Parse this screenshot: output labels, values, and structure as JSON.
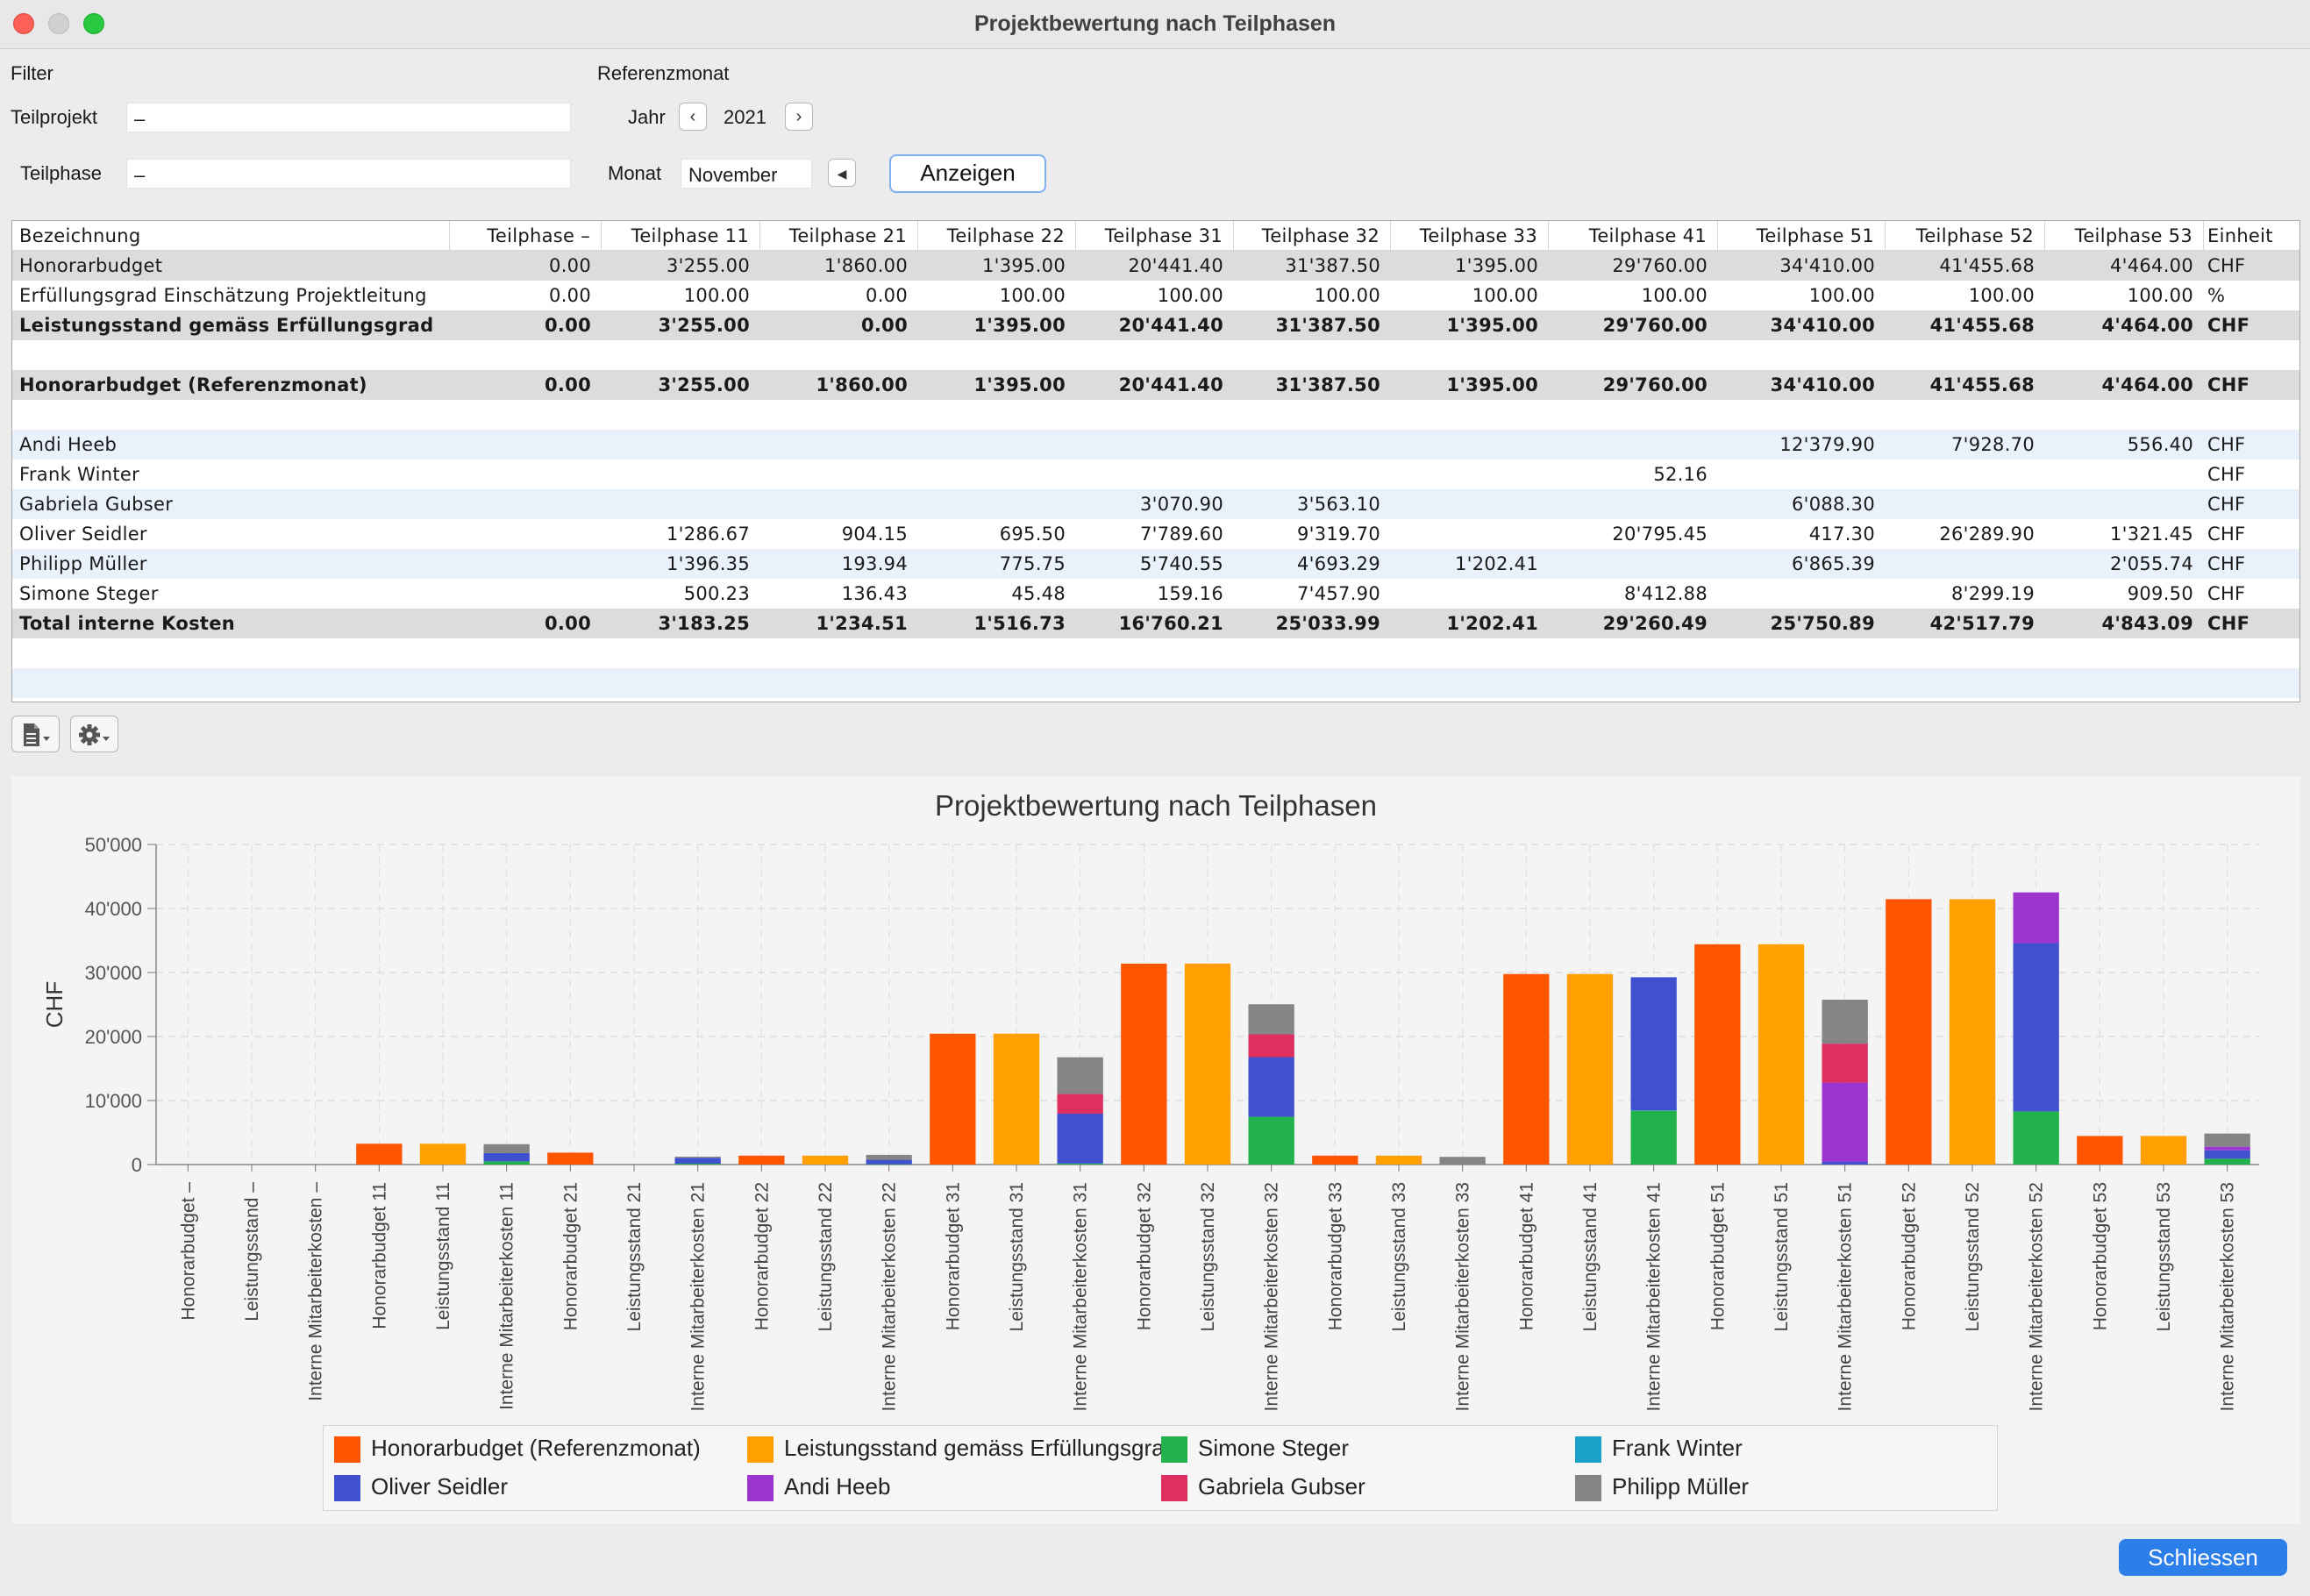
{
  "window": {
    "title": "Projektbewertung nach Teilphasen"
  },
  "filter": {
    "label": "Filter",
    "teilprojekt_label": "Teilprojekt",
    "teilprojekt_value": "–",
    "teilphase_label": "Teilphase",
    "teilphase_value": "–"
  },
  "referenz": {
    "label": "Referenzmonat",
    "jahr_label": "Jahr",
    "jahr_value": "2021",
    "monat_label": "Monat",
    "monat_value": "November",
    "anzeigen_label": "Anzeigen"
  },
  "table": {
    "headers": [
      "Bezeichnung",
      "Teilphase –",
      "Teilphase 11",
      "Teilphase 21",
      "Teilphase 22",
      "Teilphase 31",
      "Teilphase 32",
      "Teilphase 33",
      "Teilphase 41",
      "Teilphase 51",
      "Teilphase 52",
      "Teilphase 53",
      "Einheit"
    ],
    "rows": [
      {
        "style": "gray",
        "bold": false,
        "cells": [
          "Honorarbudget",
          "0.00",
          "3'255.00",
          "1'860.00",
          "1'395.00",
          "20'441.40",
          "31'387.50",
          "1'395.00",
          "29'760.00",
          "34'410.00",
          "41'455.68",
          "4'464.00",
          "CHF"
        ]
      },
      {
        "style": "white",
        "bold": false,
        "cells": [
          "Erfüllungsgrad Einschätzung Projektleitung",
          "0.00",
          "100.00",
          "0.00",
          "100.00",
          "100.00",
          "100.00",
          "100.00",
          "100.00",
          "100.00",
          "100.00",
          "100.00",
          "%"
        ]
      },
      {
        "style": "gray",
        "bold": true,
        "cells": [
          "Leistungsstand gemäss Erfüllungsgrad",
          "0.00",
          "3'255.00",
          "0.00",
          "1'395.00",
          "20'441.40",
          "31'387.50",
          "1'395.00",
          "29'760.00",
          "34'410.00",
          "41'455.68",
          "4'464.00",
          "CHF"
        ]
      },
      {
        "style": "white",
        "bold": false,
        "cells": [
          "",
          "",
          "",
          "",
          "",
          "",
          "",
          "",
          "",
          "",
          "",
          "",
          ""
        ]
      },
      {
        "style": "gray",
        "bold": true,
        "cells": [
          "Honorarbudget (Referenzmonat)",
          "0.00",
          "3'255.00",
          "1'860.00",
          "1'395.00",
          "20'441.40",
          "31'387.50",
          "1'395.00",
          "29'760.00",
          "34'410.00",
          "41'455.68",
          "4'464.00",
          "CHF"
        ]
      },
      {
        "style": "white",
        "bold": false,
        "cells": [
          "",
          "",
          "",
          "",
          "",
          "",
          "",
          "",
          "",
          "",
          "",
          "",
          ""
        ]
      },
      {
        "style": "light",
        "bold": false,
        "cells": [
          "Andi Heeb",
          "",
          "",
          "",
          "",
          "",
          "",
          "",
          "",
          "12'379.90",
          "7'928.70",
          "556.40",
          "CHF"
        ]
      },
      {
        "style": "white",
        "bold": false,
        "cells": [
          "Frank Winter",
          "",
          "",
          "",
          "",
          "",
          "",
          "",
          "52.16",
          "",
          "",
          "",
          "CHF"
        ]
      },
      {
        "style": "light",
        "bold": false,
        "cells": [
          "Gabriela Gubser",
          "",
          "",
          "",
          "",
          "3'070.90",
          "3'563.10",
          "",
          "",
          "6'088.30",
          "",
          "",
          "CHF"
        ]
      },
      {
        "style": "white",
        "bold": false,
        "cells": [
          "Oliver Seidler",
          "",
          "1'286.67",
          "904.15",
          "695.50",
          "7'789.60",
          "9'319.70",
          "",
          "20'795.45",
          "417.30",
          "26'289.90",
          "1'321.45",
          "CHF"
        ]
      },
      {
        "style": "light",
        "bold": false,
        "cells": [
          "Philipp Müller",
          "",
          "1'396.35",
          "193.94",
          "775.75",
          "5'740.55",
          "4'693.29",
          "1'202.41",
          "",
          "6'865.39",
          "",
          "2'055.74",
          "CHF"
        ]
      },
      {
        "style": "white",
        "bold": false,
        "cells": [
          "Simone Steger",
          "",
          "500.23",
          "136.43",
          "45.48",
          "159.16",
          "7'457.90",
          "",
          "8'412.88",
          "",
          "8'299.19",
          "909.50",
          "CHF"
        ]
      },
      {
        "style": "gray",
        "bold": true,
        "cells": [
          "Total interne Kosten",
          "0.00",
          "3'183.25",
          "1'234.51",
          "1'516.73",
          "16'760.21",
          "25'033.99",
          "1'202.41",
          "29'260.49",
          "25'750.89",
          "42'517.79",
          "4'843.09",
          "CHF"
        ]
      },
      {
        "style": "white",
        "bold": false,
        "cells": [
          "",
          "",
          "",
          "",
          "",
          "",
          "",
          "",
          "",
          "",
          "",
          "",
          ""
        ]
      },
      {
        "style": "light",
        "bold": false,
        "cells": [
          "",
          "",
          "",
          "",
          "",
          "",
          "",
          "",
          "",
          "",
          "",
          "",
          ""
        ]
      }
    ]
  },
  "toolbar": {
    "export_icon": "document-icon",
    "settings_icon": "gear-icon",
    "dropdown_glyph": "▾"
  },
  "colors": {
    "Honorarbudget (Referenzmonat)": "#ff5500",
    "Leistungsstand gemäss Erfüllungsgrad": "#ffa000",
    "Simone Steger": "#22b24c",
    "Frank Winter": "#1ba0c8",
    "Oliver Seidler": "#3f51cf",
    "Andi Heeb": "#9c35d0",
    "Gabriela Gubser": "#dd3060",
    "Philipp Müller": "#858585"
  },
  "chart_data": {
    "type": "bar",
    "stacked": true,
    "title": "Projektbewertung nach Teilphasen",
    "ylabel": "CHF",
    "xlabel": "",
    "ylim": [
      0,
      50000
    ],
    "yticks": [
      "0",
      "10'000",
      "20'000",
      "30'000",
      "40'000",
      "50'000"
    ],
    "grid": true,
    "legend_position": "bottom",
    "categories": [
      "Honorarbudget –",
      "Leistungsstand –",
      "Interne Mitarbeiterkosten –",
      "Honorarbudget 11",
      "Leistungsstand 11",
      "Interne Mitarbeiterkosten 11",
      "Honorarbudget 21",
      "Leistungsstand 21",
      "Interne Mitarbeiterkosten 21",
      "Honorarbudget 22",
      "Leistungsstand 22",
      "Interne Mitarbeiterkosten 22",
      "Honorarbudget 31",
      "Leistungsstand 31",
      "Interne Mitarbeiterkosten 31",
      "Honorarbudget 32",
      "Leistungsstand 32",
      "Interne Mitarbeiterkosten 32",
      "Honorarbudget 33",
      "Leistungsstand 33",
      "Interne Mitarbeiterkosten 33",
      "Honorarbudget 41",
      "Leistungsstand 41",
      "Interne Mitarbeiterkosten 41",
      "Honorarbudget 51",
      "Leistungsstand 51",
      "Interne Mitarbeiterkosten 51",
      "Honorarbudget 52",
      "Leistungsstand 52",
      "Interne Mitarbeiterkosten 52",
      "Honorarbudget 53",
      "Leistungsstand 53",
      "Interne Mitarbeiterkosten 53"
    ],
    "series": [
      {
        "name": "Honorarbudget (Referenzmonat)",
        "values": [
          0,
          0,
          0,
          3255,
          0,
          0,
          1860,
          0,
          0,
          1395,
          0,
          0,
          20441.4,
          0,
          0,
          31387.5,
          0,
          0,
          1395,
          0,
          0,
          29760,
          0,
          0,
          34410,
          0,
          0,
          41455.68,
          0,
          0,
          4464,
          0,
          0
        ]
      },
      {
        "name": "Leistungsstand gemäss Erfüllungsgrad",
        "values": [
          0,
          0,
          0,
          0,
          3255,
          0,
          0,
          0,
          0,
          0,
          1395,
          0,
          0,
          20441.4,
          0,
          0,
          31387.5,
          0,
          0,
          1395,
          0,
          0,
          29760,
          0,
          0,
          34410,
          0,
          0,
          41455.68,
          0,
          0,
          4464,
          0
        ]
      },
      {
        "name": "Simone Steger",
        "values": [
          0,
          0,
          0,
          0,
          0,
          500.23,
          0,
          0,
          136.43,
          0,
          0,
          45.48,
          0,
          0,
          159.16,
          0,
          0,
          7457.9,
          0,
          0,
          0,
          0,
          0,
          8412.88,
          0,
          0,
          0,
          0,
          0,
          8299.19,
          0,
          0,
          909.5
        ]
      },
      {
        "name": "Frank Winter",
        "values": [
          0,
          0,
          0,
          0,
          0,
          0,
          0,
          0,
          0,
          0,
          0,
          0,
          0,
          0,
          0,
          0,
          0,
          0,
          0,
          0,
          0,
          0,
          0,
          52.16,
          0,
          0,
          0,
          0,
          0,
          0,
          0,
          0,
          0
        ]
      },
      {
        "name": "Oliver Seidler",
        "values": [
          0,
          0,
          0,
          0,
          0,
          1286.67,
          0,
          0,
          904.15,
          0,
          0,
          695.5,
          0,
          0,
          7789.6,
          0,
          0,
          9319.7,
          0,
          0,
          0,
          0,
          0,
          20795.45,
          0,
          0,
          417.3,
          0,
          0,
          26289.9,
          0,
          0,
          1321.45
        ]
      },
      {
        "name": "Andi Heeb",
        "values": [
          0,
          0,
          0,
          0,
          0,
          0,
          0,
          0,
          0,
          0,
          0,
          0,
          0,
          0,
          0,
          0,
          0,
          0,
          0,
          0,
          0,
          0,
          0,
          0,
          0,
          0,
          12379.9,
          0,
          0,
          7928.7,
          0,
          0,
          556.4
        ]
      },
      {
        "name": "Gabriela Gubser",
        "values": [
          0,
          0,
          0,
          0,
          0,
          0,
          0,
          0,
          0,
          0,
          0,
          0,
          0,
          0,
          3070.9,
          0,
          0,
          3563.1,
          0,
          0,
          0,
          0,
          0,
          0,
          0,
          0,
          6088.3,
          0,
          0,
          0,
          0,
          0,
          0
        ]
      },
      {
        "name": "Philipp Müller",
        "values": [
          0,
          0,
          0,
          0,
          0,
          1396.35,
          0,
          0,
          193.94,
          0,
          0,
          775.75,
          0,
          0,
          5740.55,
          0,
          0,
          4693.29,
          0,
          0,
          1202.41,
          0,
          0,
          0,
          0,
          0,
          6865.39,
          0,
          0,
          0,
          0,
          0,
          2055.74
        ]
      }
    ]
  },
  "legend": {
    "items": [
      "Honorarbudget (Referenzmonat)",
      "Leistungsstand gemäss Erfüllungsgrad",
      "Simone Steger",
      "Frank Winter",
      "Oliver Seidler",
      "Andi Heeb",
      "Gabriela Gubser",
      "Philipp Müller"
    ]
  },
  "footer": {
    "close_label": "Schliessen"
  }
}
